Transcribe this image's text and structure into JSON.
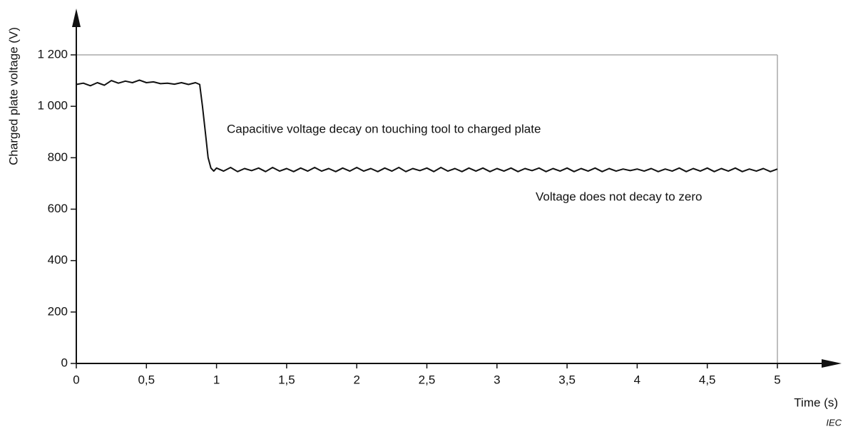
{
  "chart_data": {
    "type": "line",
    "x_label": "Time  (s)",
    "y_label": "Charged plate voltage  (V)",
    "annotations": [
      "Capacitive voltage decay on touching tool to charged plate",
      "Voltage does not decay to zero"
    ],
    "source": "IEC",
    "color": "#111111",
    "frame_color": "#aaaaaa",
    "xlim": [
      0,
      5
    ],
    "ylim": [
      0,
      1200
    ],
    "xticks": [
      0,
      {
        "value": 0.5,
        "label": "0,5"
      },
      1,
      {
        "value": 1.5,
        "label": "1,5"
      },
      2,
      {
        "value": 2.5,
        "label": "2,5"
      },
      3,
      {
        "value": 3.5,
        "label": "3,5"
      },
      4,
      {
        "value": 4.5,
        "label": "4,5"
      },
      5
    ],
    "yticks": [
      0,
      200,
      400,
      600,
      800,
      {
        "value": 1000,
        "label": "1 000"
      },
      {
        "value": 1200,
        "label": "1 200"
      }
    ],
    "x": [
      0,
      0.05,
      0.1,
      0.15,
      0.2,
      0.25,
      0.3,
      0.35,
      0.4,
      0.45,
      0.5,
      0.55,
      0.6,
      0.65,
      0.7,
      0.75,
      0.8,
      0.85,
      0.88,
      0.9,
      0.92,
      0.94,
      0.96,
      0.98,
      1,
      1.05,
      1.1,
      1.15,
      1.2,
      1.25,
      1.3,
      1.35,
      1.4,
      1.45,
      1.5,
      1.55,
      1.6,
      1.65,
      1.7,
      1.75,
      1.8,
      1.85,
      1.9,
      1.95,
      2,
      2.05,
      2.1,
      2.15,
      2.2,
      2.25,
      2.3,
      2.35,
      2.4,
      2.45,
      2.5,
      2.55,
      2.6,
      2.65,
      2.7,
      2.75,
      2.8,
      2.85,
      2.9,
      2.95,
      3,
      3.05,
      3.1,
      3.15,
      3.2,
      3.25,
      3.3,
      3.35,
      3.4,
      3.45,
      3.5,
      3.55,
      3.6,
      3.65,
      3.7,
      3.75,
      3.8,
      3.85,
      3.9,
      3.95,
      4,
      4.05,
      4.1,
      4.15,
      4.2,
      4.25,
      4.3,
      4.35,
      4.4,
      4.45,
      4.5,
      4.55,
      4.6,
      4.65,
      4.7,
      4.75,
      4.8,
      4.85,
      4.9,
      4.95,
      5
    ],
    "values": [
      1085,
      1090,
      1080,
      1092,
      1082,
      1100,
      1090,
      1098,
      1092,
      1102,
      1092,
      1095,
      1088,
      1090,
      1086,
      1092,
      1085,
      1092,
      1085,
      1000,
      900,
      800,
      760,
      748,
      760,
      748,
      762,
      746,
      758,
      750,
      760,
      746,
      762,
      748,
      758,
      746,
      760,
      748,
      762,
      748,
      758,
      746,
      760,
      748,
      762,
      748,
      758,
      746,
      760,
      748,
      762,
      746,
      758,
      750,
      760,
      746,
      762,
      748,
      758,
      746,
      760,
      748,
      760,
      746,
      758,
      748,
      760,
      746,
      758,
      750,
      760,
      746,
      758,
      748,
      760,
      746,
      758,
      748,
      760,
      746,
      758,
      748,
      756,
      750,
      756,
      748,
      758,
      746,
      756,
      748,
      760,
      746,
      758,
      748,
      760,
      746,
      758,
      748,
      760,
      746,
      756,
      748,
      758,
      746,
      756
    ]
  }
}
